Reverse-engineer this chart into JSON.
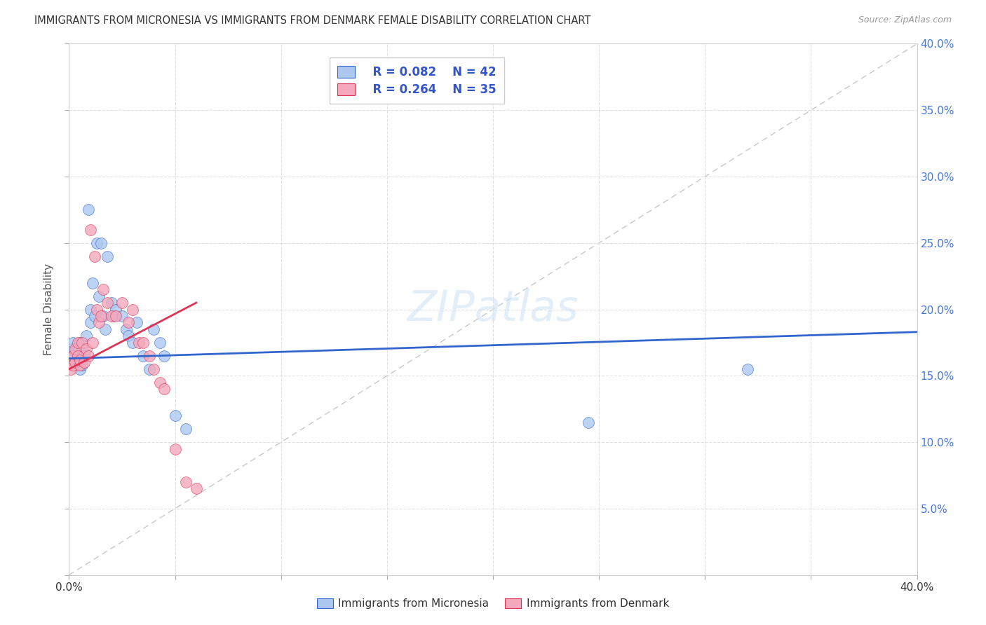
{
  "title": "IMMIGRANTS FROM MICRONESIA VS IMMIGRANTS FROM DENMARK FEMALE DISABILITY CORRELATION CHART",
  "source": "Source: ZipAtlas.com",
  "ylabel": "Female Disability",
  "legend_label1": "Immigrants from Micronesia",
  "legend_label2": "Immigrants from Denmark",
  "legend_r1": "R = 0.082",
  "legend_n1": "N = 42",
  "legend_r2": "R = 0.264",
  "legend_n2": "N = 35",
  "color_micronesia": "#adc8f0",
  "color_denmark": "#f4a8bc",
  "line_color_micronesia": "#3366cc",
  "line_color_denmark": "#dd3355",
  "diagonal_color": "#c8c8c8",
  "background_color": "#ffffff",
  "xlim": [
    0.0,
    0.4
  ],
  "ylim": [
    0.0,
    0.4
  ],
  "xticks": [
    0.0,
    0.05,
    0.1,
    0.15,
    0.2,
    0.25,
    0.3,
    0.35,
    0.4
  ],
  "yticks": [
    0.0,
    0.05,
    0.1,
    0.15,
    0.2,
    0.25,
    0.3,
    0.35,
    0.4
  ],
  "micronesia_x": [
    0.001,
    0.002,
    0.002,
    0.003,
    0.003,
    0.004,
    0.004,
    0.005,
    0.005,
    0.005,
    0.006,
    0.006,
    0.007,
    0.008,
    0.009,
    0.01,
    0.01,
    0.011,
    0.012,
    0.013,
    0.014,
    0.015,
    0.016,
    0.017,
    0.018,
    0.02,
    0.021,
    0.022,
    0.025,
    0.027,
    0.028,
    0.03,
    0.032,
    0.035,
    0.038,
    0.04,
    0.043,
    0.045,
    0.05,
    0.055,
    0.245,
    0.32
  ],
  "micronesia_y": [
    0.17,
    0.165,
    0.175,
    0.16,
    0.168,
    0.162,
    0.172,
    0.155,
    0.165,
    0.175,
    0.158,
    0.17,
    0.165,
    0.18,
    0.275,
    0.19,
    0.2,
    0.22,
    0.195,
    0.25,
    0.21,
    0.25,
    0.195,
    0.185,
    0.24,
    0.205,
    0.195,
    0.2,
    0.195,
    0.185,
    0.18,
    0.175,
    0.19,
    0.165,
    0.155,
    0.185,
    0.175,
    0.165,
    0.12,
    0.11,
    0.115,
    0.155
  ],
  "denmark_x": [
    0.001,
    0.002,
    0.002,
    0.003,
    0.003,
    0.004,
    0.004,
    0.005,
    0.005,
    0.006,
    0.007,
    0.008,
    0.009,
    0.01,
    0.011,
    0.012,
    0.013,
    0.014,
    0.015,
    0.016,
    0.018,
    0.02,
    0.022,
    0.025,
    0.028,
    0.03,
    0.033,
    0.035,
    0.038,
    0.04,
    0.043,
    0.045,
    0.05,
    0.055,
    0.06
  ],
  "denmark_y": [
    0.155,
    0.158,
    0.165,
    0.16,
    0.17,
    0.165,
    0.175,
    0.158,
    0.162,
    0.175,
    0.16,
    0.17,
    0.165,
    0.26,
    0.175,
    0.24,
    0.2,
    0.19,
    0.195,
    0.215,
    0.205,
    0.195,
    0.195,
    0.205,
    0.19,
    0.2,
    0.175,
    0.175,
    0.165,
    0.155,
    0.145,
    0.14,
    0.095,
    0.07,
    0.065
  ],
  "mic_line_x0": 0.0,
  "mic_line_x1": 0.4,
  "mic_line_y0": 0.163,
  "mic_line_y1": 0.183,
  "den_line_x0": 0.0,
  "den_line_x1": 0.06,
  "den_line_y0": 0.155,
  "den_line_y1": 0.205
}
